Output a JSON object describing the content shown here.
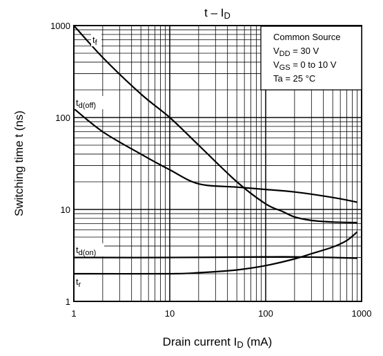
{
  "chart_data": {
    "type": "line",
    "title": {
      "main": "t – I",
      "sub": "D"
    },
    "xlabel": {
      "main": "Drain current   I",
      "sub": "D",
      "rest": "   (mA)"
    },
    "ylabel": "Switching time   t   (ns)",
    "x_scale": "log",
    "y_scale": "log",
    "xlim": [
      1,
      1000
    ],
    "ylim": [
      1,
      1000
    ],
    "x_ticks": [
      "1",
      "10",
      "100",
      "1000"
    ],
    "y_ticks": [
      "1",
      "10",
      "100",
      "1000"
    ],
    "grid": true,
    "legend_position": "top-right",
    "conditions": [
      {
        "main": "Common Source",
        "sub": "",
        "rest": ""
      },
      {
        "main": "V",
        "sub": "DD",
        "rest": " = 30 V"
      },
      {
        "main": "V",
        "sub": "GS",
        "rest": " = 0 to 10 V"
      },
      {
        "main": "Ta = 25 °C",
        "sub": "",
        "rest": ""
      }
    ],
    "series": [
      {
        "name": "tf",
        "label_main": "t",
        "label_sub": "f",
        "x": [
          1,
          2,
          5,
          10,
          20,
          50,
          100,
          150,
          200,
          300,
          500,
          900
        ],
        "y": [
          1000,
          450,
          180,
          100,
          50,
          20,
          11.5,
          9.5,
          8.3,
          7.6,
          7.3,
          7.2
        ]
      },
      {
        "name": "td(off)",
        "label_main": "t",
        "label_sub": "d(off)",
        "x": [
          1,
          2,
          5,
          10,
          20,
          50,
          100,
          200,
          500,
          900
        ],
        "y": [
          125,
          70,
          40,
          27,
          19,
          17.5,
          16.5,
          15.5,
          13.5,
          12
        ]
      },
      {
        "name": "td(on)",
        "label_main": "t",
        "label_sub": "d(on)",
        "x": [
          1,
          10,
          100,
          200,
          500,
          900
        ],
        "y": [
          3,
          3,
          3.05,
          3.05,
          3.0,
          2.95
        ]
      },
      {
        "name": "tr",
        "label_main": "t",
        "label_sub": "r",
        "x": [
          1,
          10,
          20,
          50,
          100,
          200,
          300,
          500,
          700,
          900
        ],
        "y": [
          2,
          2,
          2.05,
          2.2,
          2.45,
          2.9,
          3.3,
          3.9,
          4.6,
          5.7
        ]
      }
    ]
  }
}
